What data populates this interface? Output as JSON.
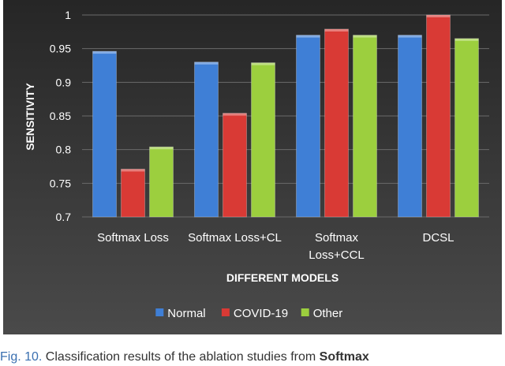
{
  "chart_data": {
    "type": "bar",
    "title": "",
    "xlabel": "DIFFERENT MODELS",
    "ylabel": "SENSITIVITY",
    "ylim": [
      0.7,
      1.0
    ],
    "yticks": [
      "0.7",
      "0.75",
      "0.8",
      "0.85",
      "0.9",
      "0.95",
      "1"
    ],
    "categories": [
      [
        "Softmax Loss"
      ],
      [
        "Softmax Loss+CL"
      ],
      [
        "Softmax",
        "Loss+CCL"
      ],
      [
        "DCSL"
      ]
    ],
    "series": [
      {
        "name": "Normal",
        "color": "#3f7fd6",
        "values": [
          0.946,
          0.93,
          0.97,
          0.97
        ]
      },
      {
        "name": "COVID-19",
        "color": "#d93a35",
        "values": [
          0.771,
          0.854,
          0.979,
          1.0
        ]
      },
      {
        "name": "Other",
        "color": "#9ccf3e",
        "values": [
          0.804,
          0.929,
          0.97,
          0.965
        ]
      }
    ],
    "background": "#3a3a3a",
    "grid": true,
    "legend": "bottom"
  },
  "caption": {
    "fig": "Fig. 10.",
    "text": " Classification results of the ablation studies from ",
    "bold": "Softmax"
  }
}
